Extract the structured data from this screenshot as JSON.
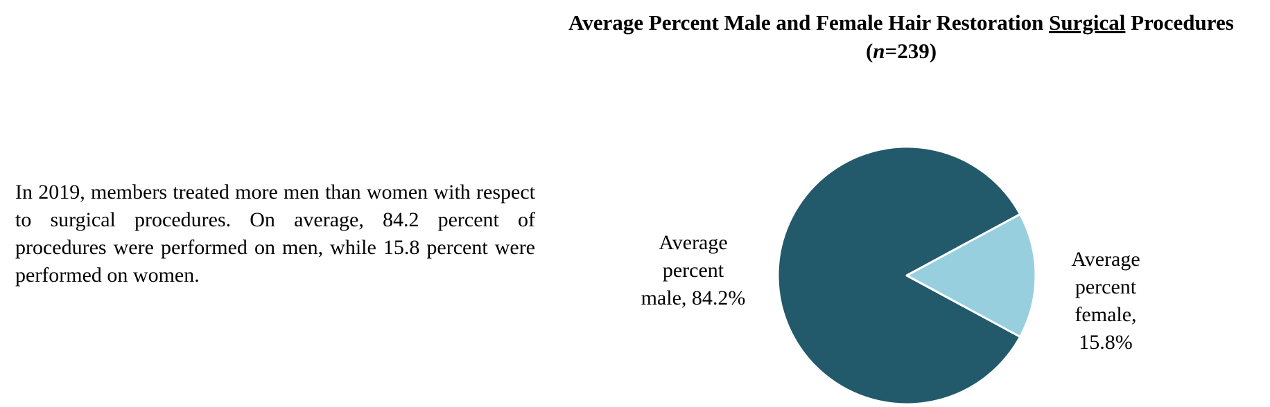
{
  "paragraph": "In 2019, members treated more men than women with respect to surgical procedures. On average, 84.2 percent of procedures were performed on men, while 15.8 percent were performed on women.",
  "title": {
    "part1": "Average Percent Male and Female Hair Restoration ",
    "underlined": "Surgical",
    "part2": " Procedures (",
    "n_label": "n",
    "part3": "=239)"
  },
  "chart_data": {
    "type": "pie",
    "title": "Average Percent Male and Female Hair Restoration Surgical Procedures (n=239)",
    "slices": [
      {
        "key": "male",
        "label_lines": [
          "Average",
          "percent",
          "male, 84.2%"
        ],
        "value": 84.2,
        "color": "#225A6B"
      },
      {
        "key": "female",
        "label_lines": [
          "Average",
          "percent",
          "female,",
          "15.8%"
        ],
        "value": 15.8,
        "color": "#98CFDF"
      }
    ],
    "legend": "none"
  }
}
